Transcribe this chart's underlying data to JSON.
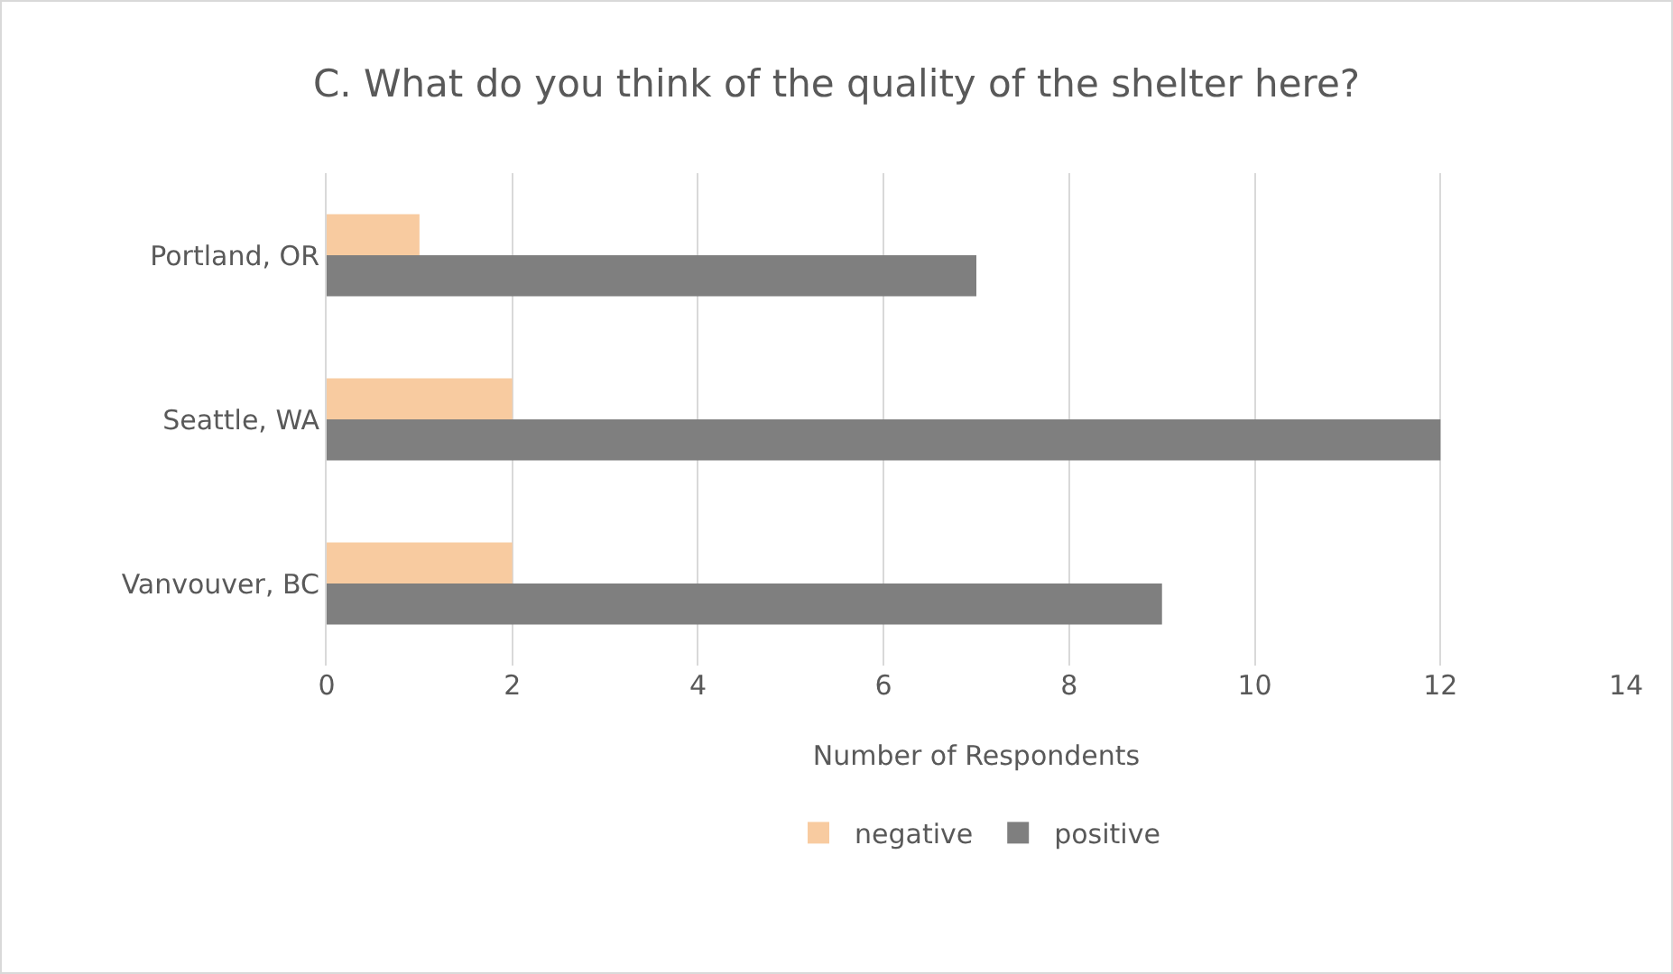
{
  "chart_data": {
    "type": "bar",
    "orientation": "horizontal",
    "title": "C. What do you think of the quality of the shelter here?",
    "xlabel": "Number of Respondents",
    "categories": [
      "Portland, OR",
      "Seattle, WA",
      "Vanvouver, BC"
    ],
    "series": [
      {
        "name": "negative",
        "color": "#f8cba0",
        "values": [
          1,
          2,
          2
        ]
      },
      {
        "name": "positive",
        "color": "#7f7f7f",
        "values": [
          7,
          12,
          9
        ]
      }
    ],
    "xlim": [
      0,
      14
    ],
    "xticks": [
      0,
      2,
      4,
      6,
      8,
      10,
      12,
      14
    ],
    "grid": "x",
    "legend": "bottom"
  }
}
